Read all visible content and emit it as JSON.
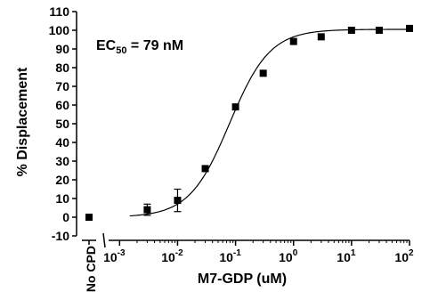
{
  "chart_data": {
    "type": "scatter",
    "title": "",
    "xlabel": "M7-GDP (uM)",
    "ylabel": "% Displacement",
    "annotation": "EC",
    "annotation_sub": "50",
    "annotation_value": " = 79 nM",
    "x_scale": "log",
    "xlim": [
      0.0008,
      100
    ],
    "ylim": [
      -10,
      110
    ],
    "y_ticks": [
      "-10",
      "0",
      "10",
      "20",
      "30",
      "40",
      "50",
      "60",
      "70",
      "80",
      "90",
      "100",
      "110"
    ],
    "x_ticks": [
      {
        "value": 0.001,
        "base": "10",
        "exp": "-3"
      },
      {
        "value": 0.01,
        "base": "10",
        "exp": "-2"
      },
      {
        "value": 0.1,
        "base": "10",
        "exp": "-1"
      },
      {
        "value": 1,
        "base": "10",
        "exp": "0"
      },
      {
        "value": 10,
        "base": "10",
        "exp": "1"
      },
      {
        "value": 100,
        "base": "10",
        "exp": "2"
      }
    ],
    "control_label": "No CPD",
    "control_point": {
      "y": 0
    },
    "points": [
      {
        "x": 0.003,
        "y": 4,
        "err": 3
      },
      {
        "x": 0.01,
        "y": 9,
        "err": 6
      },
      {
        "x": 0.03,
        "y": 26,
        "err": 1
      },
      {
        "x": 0.1,
        "y": 59,
        "err": 1
      },
      {
        "x": 0.3,
        "y": 77,
        "err": 1
      },
      {
        "x": 1,
        "y": 94,
        "err": 1
      },
      {
        "x": 3,
        "y": 96.5,
        "err": 1
      },
      {
        "x": 10,
        "y": 100,
        "err": 0.5
      },
      {
        "x": 30,
        "y": 100,
        "err": 0.5
      },
      {
        "x": 100,
        "y": 101,
        "err": 0.5
      }
    ],
    "fit": {
      "bottom": 0,
      "top": 100.5,
      "ec50": 0.079,
      "hill": 1.25
    }
  }
}
